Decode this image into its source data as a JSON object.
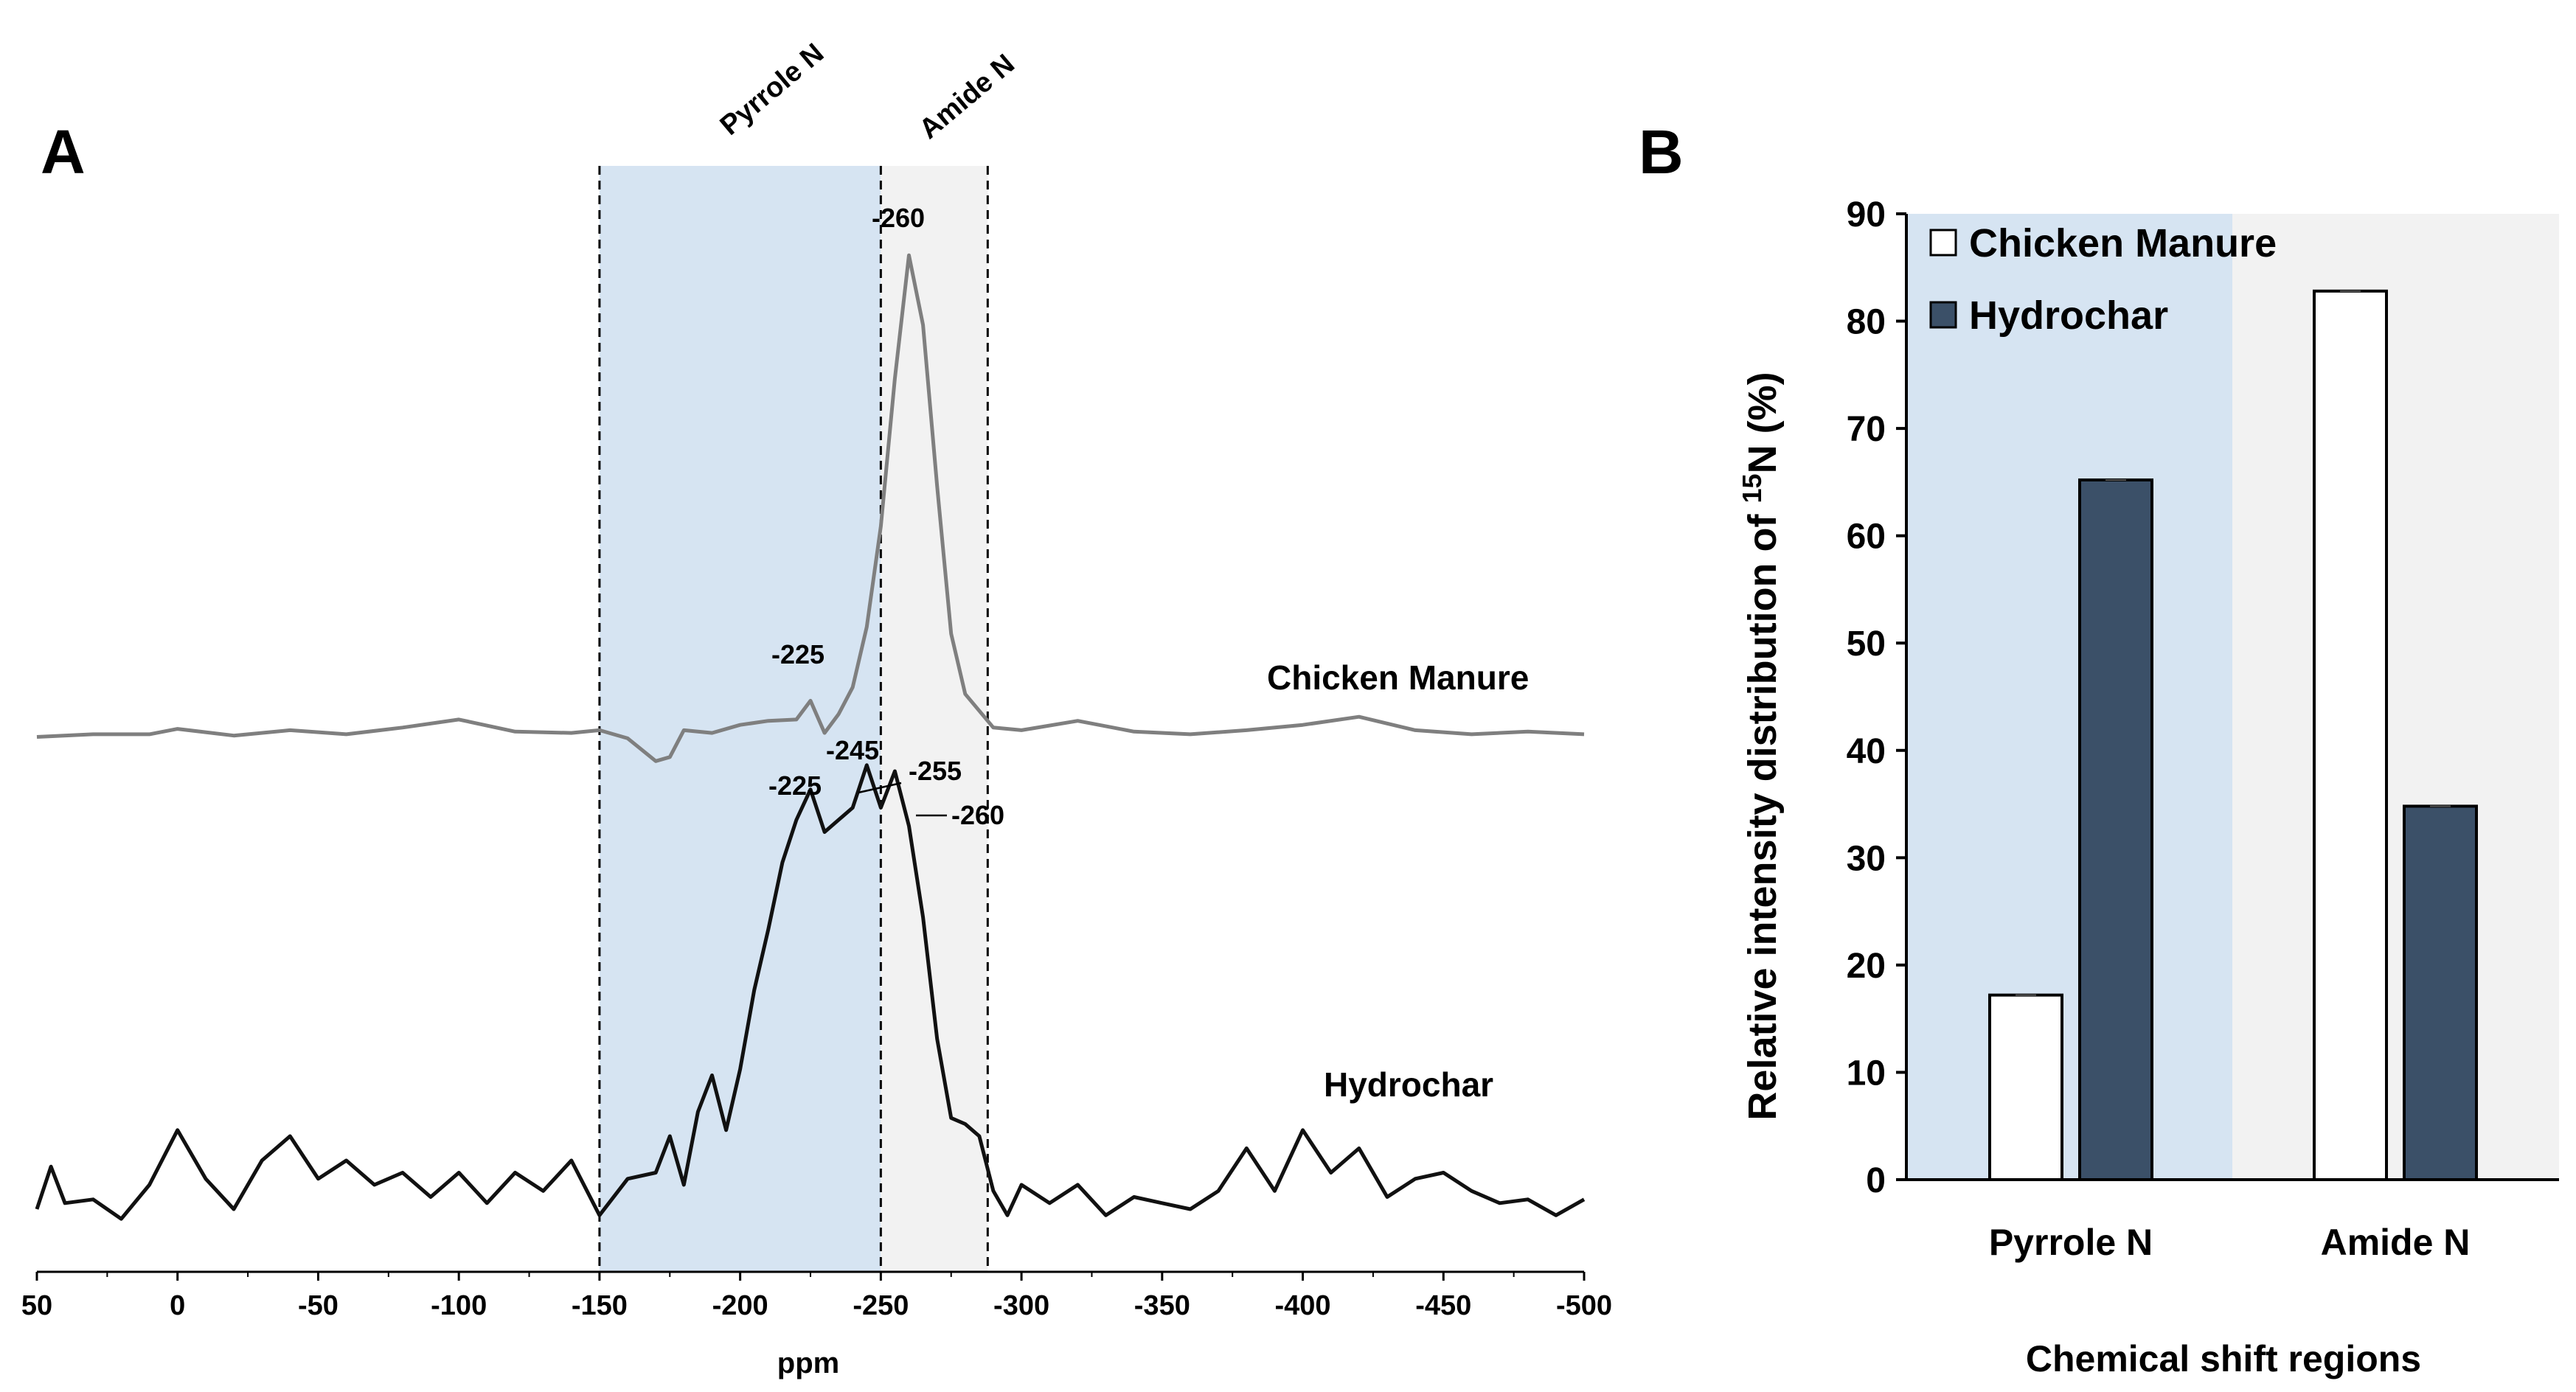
{
  "panel_a": {
    "letter": "A",
    "region_labels": {
      "pyrrole": "Pyrrole N",
      "amide": "Amide N"
    },
    "trace_labels": {
      "chicken": "Chicken Manure",
      "hydrochar": "Hydrochar"
    },
    "x_label": "ppm",
    "peak_labels": {
      "cm_260": "-260",
      "cm_225": "-225",
      "hc_245": "-245",
      "hc_255": "-255",
      "hc_225": "-225",
      "hc_260": "-260"
    },
    "colors": {
      "pyrrole_fill": "#d6e4f2",
      "amide_fill": "#f2f2f2",
      "chicken": "#7f7f7f",
      "hydrochar": "#111111"
    }
  },
  "panel_b": {
    "letter": "B",
    "legend": {
      "chicken": "Chicken Manure",
      "hydrochar": "Hydrochar"
    },
    "ylabel_main": "Relative intensity distribution of ",
    "ylabel_sup": "15",
    "ylabel_end": "N (%)",
    "xlabel": "Chemical shift regions",
    "colors": {
      "chicken": "#ffffff",
      "hydrochar": "#3b5068",
      "bg_pyrrole": "#d6e4f2",
      "bg_amide": "#f2f2f2"
    }
  },
  "chart_data": [
    {
      "type": "line",
      "title": "A",
      "xlabel": "ppm",
      "ylabel": "",
      "xlim": [
        50,
        -500
      ],
      "xticks": [
        "50",
        "0",
        "-50",
        "-100",
        "-150",
        "-200",
        "-250",
        "-300",
        "-350",
        "-400",
        "-450",
        "-500"
      ],
      "regions": [
        {
          "name": "Pyrrole N",
          "from": -150,
          "to": -250
        },
        {
          "name": "Amide N",
          "from": -250,
          "to": -288
        }
      ],
      "series": [
        {
          "name": "Chicken Manure",
          "x": [
            50,
            30,
            10,
            0,
            -20,
            -40,
            -60,
            -80,
            -100,
            -120,
            -140,
            -150,
            -160,
            -170,
            -175,
            -180,
            -190,
            -200,
            -210,
            -220,
            -225,
            -230,
            -235,
            -240,
            -245,
            -250,
            -255,
            -260,
            -265,
            -270,
            -275,
            -280,
            -290,
            -300,
            -320,
            -340,
            -360,
            -380,
            -400,
            -420,
            -440,
            -460,
            -480,
            -500
          ],
          "y": [
            0.3,
            0.5,
            0.5,
            0.9,
            0.4,
            0.8,
            0.5,
            1.0,
            1.6,
            0.7,
            0.6,
            0.8,
            0.2,
            -1.5,
            -1.2,
            0.8,
            0.6,
            1.2,
            1.5,
            1.6,
            3.0,
            0.6,
            2.0,
            4.0,
            8.5,
            16.0,
            27.0,
            36.2,
            31.0,
            19.0,
            8.0,
            3.5,
            1.0,
            0.8,
            1.5,
            0.7,
            0.5,
            0.8,
            1.2,
            1.8,
            0.8,
            0.5,
            0.7,
            0.5
          ]
        },
        {
          "name": "Hydrochar",
          "x": [
            50,
            45,
            40,
            30,
            20,
            10,
            0,
            -10,
            -20,
            -30,
            -40,
            -50,
            -60,
            -70,
            -80,
            -90,
            -100,
            -110,
            -120,
            -130,
            -140,
            -150,
            -160,
            -170,
            -175,
            -180,
            -185,
            -190,
            -195,
            -200,
            -205,
            -210,
            -215,
            -220,
            -225,
            -230,
            -235,
            -240,
            -245,
            -250,
            -255,
            -260,
            -265,
            -270,
            -275,
            -280,
            -285,
            -290,
            -295,
            -300,
            -310,
            -320,
            -330,
            -340,
            -350,
            -360,
            -370,
            -380,
            -390,
            -400,
            -410,
            -420,
            -430,
            -440,
            -450,
            -460,
            -470,
            -480,
            -490,
            -500
          ],
          "y": [
            0.0,
            3.5,
            0.5,
            0.8,
            -0.8,
            2.0,
            6.5,
            2.5,
            0.0,
            4.0,
            6.0,
            2.5,
            4.0,
            2.0,
            3.0,
            1.0,
            3.0,
            0.5,
            3.0,
            1.5,
            4.0,
            -0.5,
            2.5,
            3.0,
            6.0,
            2.0,
            8.0,
            11.0,
            6.5,
            11.5,
            18.0,
            23.0,
            28.5,
            32.0,
            34.5,
            31.0,
            32.0,
            33.0,
            36.5,
            33.0,
            36.0,
            31.5,
            24.0,
            14.0,
            7.5,
            7.0,
            6.0,
            1.5,
            -0.5,
            2.0,
            0.5,
            2.0,
            -0.5,
            1.0,
            0.5,
            0.0,
            1.5,
            5.0,
            1.5,
            6.5,
            3.0,
            5.0,
            1.0,
            2.5,
            3.0,
            1.5,
            0.5,
            0.8,
            -0.5,
            0.8
          ]
        }
      ]
    },
    {
      "type": "bar",
      "title": "B",
      "categories": [
        "Pyrrole N",
        "Amide N"
      ],
      "series": [
        {
          "name": "Chicken Manure",
          "values": [
            17.2,
            82.8
          ]
        },
        {
          "name": "Hydrochar",
          "values": [
            65.2,
            34.8
          ]
        }
      ],
      "xlabel": "Chemical shift regions",
      "ylabel": "Relative intensity distribution of 15N (%)",
      "ylim": [
        0,
        90
      ],
      "yticks": [
        0,
        10,
        20,
        30,
        40,
        50,
        60,
        70,
        80,
        90
      ],
      "legend": "top-left"
    }
  ]
}
